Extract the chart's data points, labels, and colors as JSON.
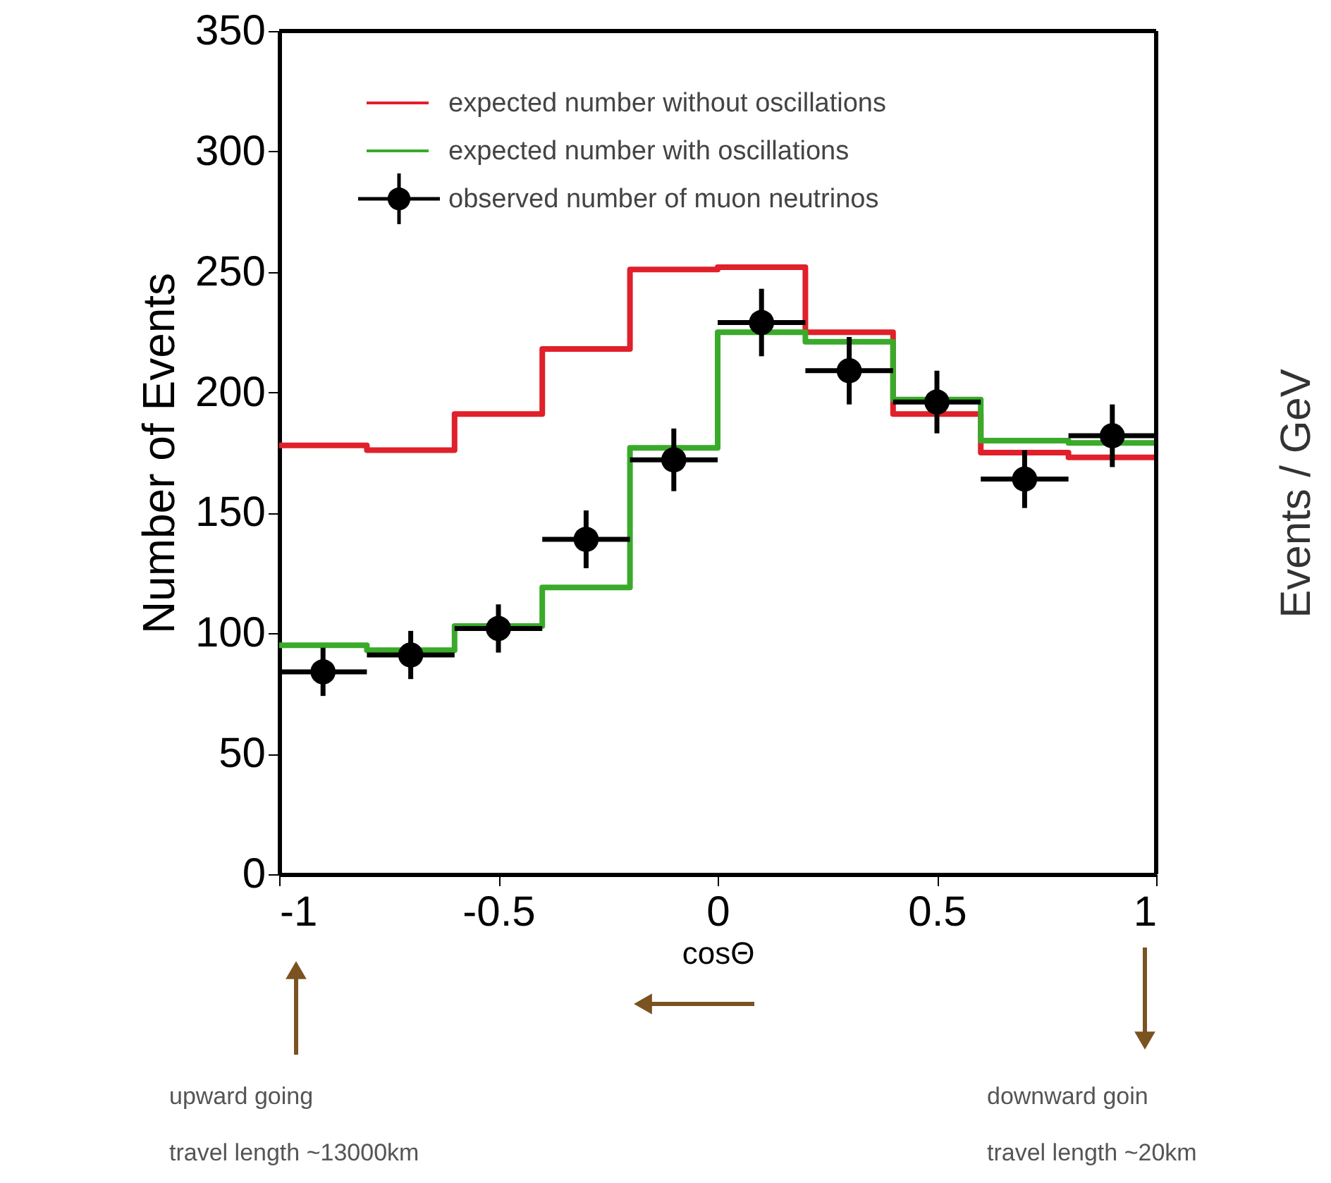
{
  "chart_data": {
    "type": "step",
    "xlabel": "cosΘ",
    "ylabel": "Number of Events",
    "xlim": [
      -1,
      1
    ],
    "xticks": [
      -1,
      -0.5,
      0,
      0.5,
      1
    ],
    "ylim": [
      0,
      350
    ],
    "yticks": [
      0,
      50,
      100,
      150,
      200,
      250,
      300,
      350
    ],
    "grid": false,
    "legend": "top left",
    "series": [
      {
        "name": "expected number without oscillations",
        "type": "step",
        "color": "#e0202a",
        "x": [
          -1,
          -0.8,
          -0.6,
          -0.4,
          -0.2,
          0,
          0.2,
          0.4,
          0.6,
          0.8,
          1
        ],
        "values": [
          178,
          176,
          191,
          218,
          251,
          252,
          225,
          191,
          175,
          173,
          173
        ]
      },
      {
        "name": "expected number with oscillations",
        "type": "step",
        "color": "#3aaa2a",
        "x": [
          -1,
          -0.8,
          -0.6,
          -0.4,
          -0.2,
          0,
          0.2,
          0.4,
          0.6,
          0.8,
          1
        ],
        "values": [
          95,
          93,
          103,
          119,
          177,
          225,
          221,
          197,
          180,
          179,
          179
        ]
      },
      {
        "name": "observed number of muon neutrinos",
        "type": "scatter",
        "color": "#000000",
        "marker": "circle",
        "x": [
          -0.9,
          -0.7,
          -0.5,
          -0.3,
          -0.1,
          0.1,
          0.3,
          0.5,
          0.7,
          0.9
        ],
        "values": [
          84,
          91,
          102,
          139,
          172,
          229,
          209,
          196,
          164,
          182
        ],
        "errors": [
          10,
          10,
          10,
          12,
          13,
          14,
          14,
          13,
          12,
          13
        ],
        "xerrors": [
          0.1,
          0.1,
          0.1,
          0.1,
          0.1,
          0.1,
          0.1,
          0.1,
          0.1,
          0.1
        ]
      }
    ],
    "annotations": [
      "upward going",
      "travel length ~13000km",
      "downward goin",
      "travel length ~20km",
      "Events / GeV"
    ]
  }
}
